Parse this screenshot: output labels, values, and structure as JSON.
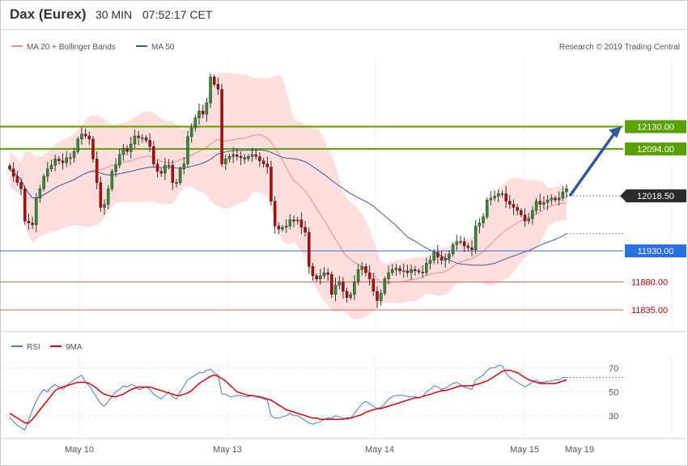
{
  "header": {
    "instrument": "Dax (Eurex)",
    "timeframe": "30 MIN",
    "time": "07:52:17 CET"
  },
  "legend": {
    "ma20_bb": "MA 20 + Bollinger Bands",
    "ma50": "MA 50",
    "copyright": "Research © 2019 Trading Central",
    "rsi": "RSI",
    "ma9": "9MA"
  },
  "colors": {
    "up": "#2f8f2f",
    "down": "#c00000",
    "band_fill": "#ffdede",
    "ma20": "#f08a8a",
    "ma50": "#3a5a9a",
    "resistance": "#5aa000",
    "support_blue": "#2a6fe0",
    "support_red": "#e06060",
    "arrow": "#2b5b98",
    "rsi": "#4a78d8",
    "rsi_ma": "#e00000"
  },
  "chart_data": [
    {
      "type": "candlestick",
      "title": "Dax (Eurex)",
      "timeframe": "30 MIN",
      "ylim": [
        11800,
        12240
      ],
      "x_labels": [
        "May 10",
        "May 13",
        "May 14",
        "May 15",
        "May 19"
      ],
      "levels": [
        {
          "name": "resistance-2",
          "value": 12130,
          "label": "12130.00",
          "style": "green-tag"
        },
        {
          "name": "resistance-1",
          "value": 12094,
          "label": "12094.00",
          "style": "green-tag"
        },
        {
          "name": "last-price",
          "value": 12018.5,
          "label": "12018.50",
          "style": "dark-tag"
        },
        {
          "name": "pivot",
          "value": 11930,
          "label": "11930.00",
          "style": "blue-tag"
        },
        {
          "name": "support-1",
          "value": 11880,
          "label": "11880.00",
          "style": "red-text"
        },
        {
          "name": "support-2",
          "value": 11835,
          "label": "11835.00",
          "style": "red-text"
        }
      ],
      "ohlc_close": [
        12062,
        12050,
        12040,
        12030,
        11978,
        11975,
        11972,
        12015,
        12030,
        12050,
        12062,
        12068,
        12078,
        12075,
        12072,
        12080,
        12080,
        12090,
        12110,
        12118,
        12115,
        12110,
        12078,
        12040,
        12000,
        12005,
        12030,
        12058,
        12068,
        12085,
        12095,
        12090,
        12102,
        12115,
        12112,
        12112,
        12108,
        12098,
        12070,
        12058,
        12055,
        12068,
        12068,
        12040,
        12040,
        12062,
        12070,
        12114,
        12128,
        12144,
        12155,
        12150,
        12168,
        12210,
        12198,
        12190,
        12070,
        12078,
        12082,
        12085,
        12082,
        12080,
        12078,
        12082,
        12085,
        12082,
        12075,
        12070,
        12065,
        12010,
        11970,
        11965,
        11968,
        11970,
        11980,
        11978,
        11980,
        11968,
        11960,
        11905,
        11890,
        11885,
        11890,
        11895,
        11892,
        11860,
        11875,
        11880,
        11865,
        11855,
        11860,
        11880,
        11900,
        11905,
        11895,
        11885,
        11865,
        11850,
        11862,
        11885,
        11895,
        11900,
        11902,
        11898,
        11898,
        11895,
        11900,
        11898,
        11896,
        11895,
        11910,
        11915,
        11928,
        11920,
        11915,
        11918,
        11925,
        11940,
        11945,
        11945,
        11938,
        11935,
        11932,
        11970,
        11975,
        11985,
        12012,
        12015,
        12018,
        12022,
        12022,
        12010,
        12005,
        12000,
        11995,
        11988,
        11978,
        11982,
        11995,
        12010,
        12005,
        12008,
        12012,
        12015,
        12012,
        12015,
        12025,
        12030
      ],
      "series_overlay": [
        "MA 20",
        "Bollinger upper",
        "Bollinger lower",
        "MA 50"
      ],
      "forecast_arrow": {
        "from": 12018.5,
        "to": 12130
      }
    },
    {
      "type": "line",
      "title": "RSI",
      "ylim": [
        15,
        80
      ],
      "yticks": [
        30,
        50,
        70
      ],
      "series": [
        {
          "name": "RSI",
          "values": [
            29,
            25,
            22,
            20,
            18,
            26,
            35,
            42,
            48,
            52,
            50,
            54,
            56,
            54,
            52,
            55,
            58,
            60,
            62,
            64,
            58,
            55,
            50,
            45,
            40,
            38,
            42,
            46,
            50,
            52,
            55,
            54,
            56,
            55,
            52,
            53,
            54,
            52,
            48,
            46,
            44,
            47,
            50,
            46,
            44,
            50,
            55,
            60,
            62,
            64,
            66,
            66,
            68,
            69,
            66,
            64,
            48,
            48,
            46,
            46,
            47,
            47,
            46,
            46,
            47,
            46,
            45,
            44,
            43,
            30,
            28,
            28,
            29,
            30,
            32,
            30,
            30,
            28,
            26,
            24,
            23,
            24,
            25,
            27,
            28,
            28,
            30,
            29,
            28,
            27,
            28,
            32,
            36,
            40,
            42,
            40,
            38,
            36,
            37,
            40,
            44,
            46,
            47,
            47,
            47,
            46,
            46,
            46,
            45,
            46,
            50,
            52,
            55,
            54,
            52,
            53,
            55,
            57,
            58,
            56,
            54,
            53,
            52,
            60,
            62,
            64,
            68,
            70,
            70,
            72,
            72,
            66,
            62,
            60,
            58,
            56,
            54,
            56,
            58,
            60,
            58,
            58,
            59,
            59,
            60,
            60,
            62,
            62
          ]
        },
        {
          "name": "9MA",
          "values": [
            32,
            30,
            28,
            26,
            24,
            24,
            27,
            31,
            35,
            39,
            43,
            47,
            51,
            53,
            54,
            55,
            56,
            57,
            58,
            58,
            58,
            57,
            55,
            53,
            50,
            48,
            47,
            46,
            46,
            47,
            48,
            50,
            52,
            53,
            54,
            54,
            54,
            54,
            53,
            52,
            51,
            50,
            49,
            48,
            47,
            47,
            48,
            49,
            51,
            54,
            57,
            59,
            61,
            63,
            64,
            63,
            61,
            59,
            56,
            53,
            50,
            49,
            48,
            47,
            47,
            46,
            46,
            45,
            44,
            43,
            41,
            39,
            37,
            35,
            34,
            33,
            32,
            31,
            30,
            29,
            28,
            28,
            27,
            27,
            27,
            27,
            27,
            27,
            27,
            28,
            28,
            29,
            30,
            31,
            33,
            34,
            35,
            36,
            36,
            37,
            38,
            39,
            40,
            41,
            42,
            43,
            44,
            45,
            45,
            46,
            47,
            48,
            49,
            50,
            51,
            51,
            52,
            53,
            54,
            55,
            55,
            55,
            55,
            56,
            57,
            58,
            59,
            61,
            63,
            65,
            67,
            68,
            68,
            67,
            66,
            64,
            62,
            60,
            59,
            58,
            57,
            57,
            57,
            57,
            57,
            58,
            59,
            60
          ]
        }
      ]
    }
  ]
}
